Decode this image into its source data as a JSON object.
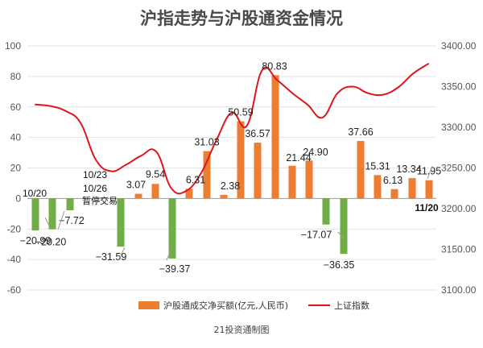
{
  "chart_data": {
    "type": "bar",
    "title": "沪指走势与沪股通资金情况",
    "source": "21投资通制图",
    "colors": {
      "positive": "#ed7d31",
      "negative": "#70ad47",
      "line": "#e0141e",
      "grid": "#e3e3e3",
      "zero_line": "#999999"
    },
    "left_axis": {
      "ylim": [
        -60,
        100
      ],
      "ticks": [
        -60,
        -40,
        -20,
        0,
        20,
        40,
        60,
        80,
        100
      ],
      "tick_labels": [
        "-60",
        "-40",
        "-20",
        "0",
        "20",
        "40",
        "60",
        "80",
        "100"
      ]
    },
    "right_axis": {
      "ylim": [
        3100,
        3400
      ],
      "ticks": [
        3100,
        3150,
        3200,
        3250,
        3300,
        3350,
        3400
      ],
      "tick_labels": [
        "3100.00",
        "3150.00",
        "3200.00",
        "3250.00",
        "3300.00",
        "3350.00",
        "3400.00"
      ]
    },
    "series": [
      {
        "name": "沪股通成交净买额(亿元,人民币)",
        "type": "bar",
        "axis": "left",
        "values": [
          -20.99,
          -20.2,
          -7.72,
          -31.59,
          3.07,
          9.54,
          -39.37,
          6.31,
          31.03,
          2.38,
          50.59,
          36.57,
          80.83,
          21.44,
          24.9,
          -17.07,
          -36.35,
          37.66,
          15.31,
          6.13,
          13.34,
          11.95
        ],
        "labels": [
          "−20.99",
          "−20.20",
          "−7.72",
          "−31.59",
          "3.07",
          "9.54",
          "−39.37",
          "6.31",
          "31.03",
          "2.38",
          "50.59",
          "36.57",
          "80.83",
          "21.44",
          "24.90",
          "−17.07",
          "−36.35",
          "37.66",
          "15.31",
          "6.13",
          "13.34",
          "11.95"
        ]
      },
      {
        "name": "上证指数",
        "type": "line",
        "axis": "right",
        "values": [
          3328,
          3326,
          3320,
          3305,
          3260,
          3246,
          3254,
          3265,
          3270,
          3225,
          3222,
          3245,
          3285,
          3318,
          3302,
          3370,
          3358,
          3342,
          3328,
          3312,
          3342,
          3350,
          3342,
          3340,
          3349,
          3366,
          3378
        ]
      }
    ],
    "annotations": {
      "start_date": "10/20",
      "end_date": "11/20",
      "gap_date_1": "10/23",
      "gap_date_2": "10/26",
      "gap_note": "暂停交易"
    },
    "legend": {
      "position": "bottom"
    }
  }
}
